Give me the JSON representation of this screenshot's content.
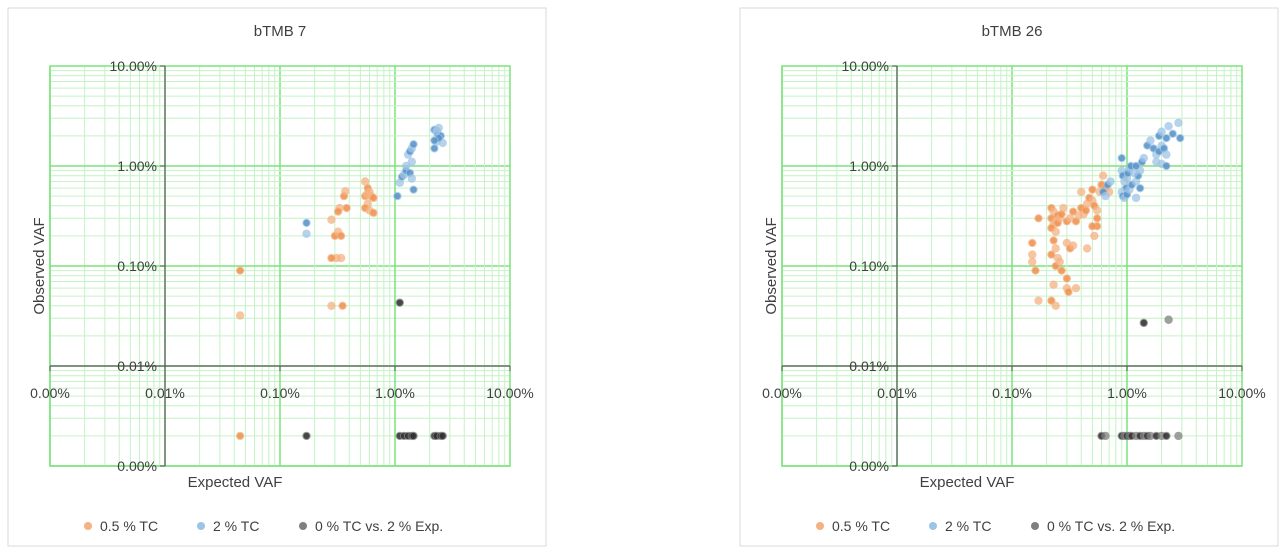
{
  "chart_data": [
    {
      "type": "scatter",
      "title": "bTMB 7",
      "xlabel": "Expected VAF",
      "ylabel": "Observed VAF",
      "x_scale": "log",
      "y_scale": "log",
      "grid": true,
      "legend_position": "bottom",
      "x_ticks": [
        "0.00%",
        "0.01%",
        "0.10%",
        "1.00%",
        "10.00%"
      ],
      "y_ticks": [
        "10.00%",
        "1.00%",
        "0.10%",
        "0.01%",
        "0.00%"
      ],
      "series": [
        {
          "name": "0.5 % TC",
          "color": "#F4B183",
          "dense_color": "#ED7D31",
          "points": [
            [
              0.045,
              0.09
            ],
            [
              0.045,
              0.032
            ],
            [
              0.045,
              0.002
            ],
            [
              0.28,
              0.29
            ],
            [
              0.3,
              0.2
            ],
            [
              0.32,
              0.22
            ],
            [
              0.34,
              0.2
            ],
            [
              0.31,
              0.12
            ],
            [
              0.28,
              0.12
            ],
            [
              0.34,
              0.12
            ],
            [
              0.36,
              0.5
            ],
            [
              0.37,
              0.56
            ],
            [
              0.38,
              0.38
            ],
            [
              0.33,
              0.38
            ],
            [
              0.32,
              0.35
            ],
            [
              0.28,
              0.04
            ],
            [
              0.35,
              0.04
            ],
            [
              0.55,
              0.7
            ],
            [
              0.58,
              0.6
            ],
            [
              0.6,
              0.55
            ],
            [
              0.55,
              0.5
            ],
            [
              0.62,
              0.5
            ],
            [
              0.65,
              0.48
            ],
            [
              0.58,
              0.42
            ],
            [
              0.55,
              0.38
            ],
            [
              0.6,
              0.36
            ],
            [
              0.65,
              0.34
            ],
            [
              0.57,
              0.52
            ]
          ]
        },
        {
          "name": "2 % TC",
          "color": "#9DC3E6",
          "dense_color": "#2E75B6",
          "points": [
            [
              0.17,
              0.27
            ],
            [
              0.17,
              0.21
            ],
            [
              1.05,
              0.5
            ],
            [
              1.1,
              0.68
            ],
            [
              1.15,
              0.78
            ],
            [
              1.2,
              0.82
            ],
            [
              1.25,
              0.9
            ],
            [
              1.3,
              1.3
            ],
            [
              1.35,
              1.4
            ],
            [
              1.4,
              1.5
            ],
            [
              1.45,
              1.65
            ],
            [
              1.4,
              1.1
            ],
            [
              1.35,
              0.85
            ],
            [
              1.4,
              0.75
            ],
            [
              1.45,
              0.58
            ],
            [
              1.25,
              1.0
            ],
            [
              2.2,
              2.3
            ],
            [
              2.3,
              2.2
            ],
            [
              2.35,
              2.1
            ],
            [
              2.4,
              2.4
            ],
            [
              2.5,
              2.0
            ],
            [
              2.6,
              1.7
            ],
            [
              2.2,
              1.5
            ],
            [
              2.3,
              1.75
            ],
            [
              2.4,
              1.9
            ],
            [
              2.3,
              2.25
            ],
            [
              2.2,
              1.8
            ]
          ]
        },
        {
          "name": "0 % TC vs. 2 % Exp.",
          "color": "#7F7F7F",
          "dense_color": "#000000",
          "points": [
            [
              1.1,
              0.043
            ],
            [
              0.17,
              0.002
            ],
            [
              1.1,
              0.002
            ],
            [
              1.2,
              0.002
            ],
            [
              1.3,
              0.002
            ],
            [
              1.4,
              0.002
            ],
            [
              1.45,
              0.002
            ],
            [
              2.2,
              0.002
            ],
            [
              2.3,
              0.002
            ],
            [
              2.5,
              0.002
            ],
            [
              2.6,
              0.002
            ]
          ]
        }
      ]
    },
    {
      "type": "scatter",
      "title": "bTMB 26",
      "xlabel": "Expected VAF",
      "ylabel": "Observed VAF",
      "x_scale": "log",
      "y_scale": "log",
      "grid": true,
      "legend_position": "bottom",
      "x_ticks": [
        "0.00%",
        "0.01%",
        "0.10%",
        "1.00%",
        "10.00%"
      ],
      "y_ticks": [
        "10.00%",
        "1.00%",
        "0.10%",
        "0.01%",
        "0.00%"
      ],
      "series": [
        {
          "name": "0.5 % TC",
          "color": "#F4B183",
          "dense_color": "#ED7D31",
          "points": [
            [
              0.15,
              0.17
            ],
            [
              0.15,
              0.13
            ],
            [
              0.16,
              0.09
            ],
            [
              0.15,
              0.11
            ],
            [
              0.17,
              0.3
            ],
            [
              0.17,
              0.045
            ],
            [
              0.22,
              0.38
            ],
            [
              0.23,
              0.35
            ],
            [
              0.22,
              0.3
            ],
            [
              0.24,
              0.28
            ],
            [
              0.25,
              0.32
            ],
            [
              0.23,
              0.26
            ],
            [
              0.22,
              0.24
            ],
            [
              0.24,
              0.22
            ],
            [
              0.25,
              0.27
            ],
            [
              0.26,
              0.3
            ],
            [
              0.27,
              0.33
            ],
            [
              0.28,
              0.38
            ],
            [
              0.23,
              0.18
            ],
            [
              0.24,
              0.15
            ],
            [
              0.22,
              0.13
            ],
            [
              0.25,
              0.12
            ],
            [
              0.24,
              0.1
            ],
            [
              0.26,
              0.11
            ],
            [
              0.27,
              0.09
            ],
            [
              0.23,
              0.065
            ],
            [
              0.22,
              0.045
            ],
            [
              0.24,
              0.04
            ],
            [
              0.3,
              0.075
            ],
            [
              0.3,
              0.06
            ],
            [
              0.31,
              0.055
            ],
            [
              0.36,
              0.06
            ],
            [
              0.3,
              0.28
            ],
            [
              0.32,
              0.3
            ],
            [
              0.34,
              0.35
            ],
            [
              0.3,
              0.17
            ],
            [
              0.32,
              0.15
            ],
            [
              0.34,
              0.16
            ],
            [
              0.36,
              0.28
            ],
            [
              0.38,
              0.32
            ],
            [
              0.4,
              0.38
            ],
            [
              0.42,
              0.33
            ],
            [
              0.44,
              0.36
            ],
            [
              0.45,
              0.42
            ],
            [
              0.47,
              0.48
            ],
            [
              0.5,
              0.45
            ],
            [
              0.52,
              0.4
            ],
            [
              0.55,
              0.36
            ],
            [
              0.55,
              0.25
            ],
            [
              0.52,
              0.2
            ],
            [
              0.5,
              0.25
            ],
            [
              0.45,
              0.15
            ],
            [
              0.55,
              0.3
            ],
            [
              0.58,
              0.55
            ],
            [
              0.6,
              0.65
            ],
            [
              0.62,
              0.8
            ],
            [
              0.65,
              0.6
            ],
            [
              0.7,
              0.55
            ],
            [
              0.5,
              0.58
            ],
            [
              0.4,
              0.55
            ]
          ]
        },
        {
          "name": "2 % TC",
          "color": "#9DC3E6",
          "dense_color": "#2E75B6",
          "points": [
            [
              0.62,
              0.55
            ],
            [
              0.65,
              0.5
            ],
            [
              0.68,
              0.65
            ],
            [
              0.72,
              0.7
            ],
            [
              0.9,
              1.2
            ],
            [
              0.9,
              0.9
            ],
            [
              0.92,
              0.8
            ],
            [
              0.95,
              0.7
            ],
            [
              0.98,
              0.6
            ],
            [
              1.0,
              0.75
            ],
            [
              1.02,
              0.85
            ],
            [
              1.05,
              0.95
            ],
            [
              1.08,
              1.0
            ],
            [
              0.9,
              0.55
            ],
            [
              0.92,
              0.5
            ],
            [
              0.95,
              0.48
            ],
            [
              1.0,
              0.52
            ],
            [
              1.05,
              0.58
            ],
            [
              1.1,
              0.65
            ],
            [
              1.2,
              0.7
            ],
            [
              1.25,
              0.8
            ],
            [
              1.3,
              0.9
            ],
            [
              1.35,
              1.1
            ],
            [
              1.4,
              1.2
            ],
            [
              1.2,
              1.0
            ],
            [
              1.15,
              0.85
            ],
            [
              1.3,
              0.6
            ],
            [
              1.2,
              0.48
            ],
            [
              1.5,
              1.6
            ],
            [
              1.6,
              1.8
            ],
            [
              1.7,
              1.5
            ],
            [
              1.8,
              1.3
            ],
            [
              1.9,
              1.4
            ],
            [
              2.0,
              1.6
            ],
            [
              2.1,
              1.5
            ],
            [
              2.2,
              1.3
            ],
            [
              1.9,
              2.0
            ],
            [
              2.0,
              2.2
            ],
            [
              2.2,
              1.9
            ],
            [
              2.3,
              2.5
            ],
            [
              2.5,
              2.1
            ],
            [
              2.8,
              2.7
            ],
            [
              2.9,
              1.9
            ],
            [
              2.0,
              1.05
            ],
            [
              2.2,
              1.0
            ],
            [
              1.8,
              1.1
            ]
          ]
        },
        {
          "name": "0 % TC vs. 2 % Exp.",
          "color": "#7F7F7F",
          "dense_color": "#000000",
          "points": [
            [
              1.4,
              0.027
            ],
            [
              2.3,
              0.029
            ],
            [
              0.6,
              0.002
            ],
            [
              0.65,
              0.002
            ],
            [
              0.9,
              0.002
            ],
            [
              0.95,
              0.002
            ],
            [
              1.0,
              0.002
            ],
            [
              1.05,
              0.002
            ],
            [
              1.1,
              0.002
            ],
            [
              1.2,
              0.002
            ],
            [
              1.3,
              0.002
            ],
            [
              1.4,
              0.002
            ],
            [
              1.5,
              0.002
            ],
            [
              1.6,
              0.002
            ],
            [
              1.8,
              0.002
            ],
            [
              2.0,
              0.002
            ],
            [
              2.2,
              0.002
            ],
            [
              2.8,
              0.002
            ]
          ]
        }
      ]
    }
  ]
}
